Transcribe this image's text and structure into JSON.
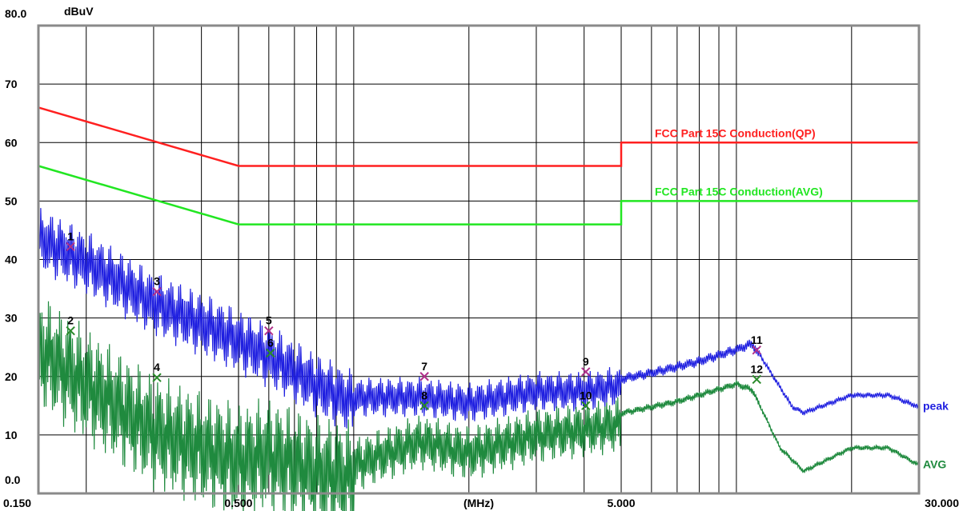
{
  "chart_data": {
    "type": "line",
    "title": "",
    "xlabel": "(MHz)",
    "ylabel": "dBuV",
    "x_scale": "log",
    "xlim": [
      0.15,
      30
    ],
    "ylim": [
      0,
      80
    ],
    "grid": true,
    "y_ticks": [
      {
        "value": 80,
        "label": "80.0"
      },
      {
        "value": 70,
        "label": "70"
      },
      {
        "value": 60,
        "label": "60"
      },
      {
        "value": 50,
        "label": "50"
      },
      {
        "value": 40,
        "label": "40"
      },
      {
        "value": 30,
        "label": "30"
      },
      {
        "value": 20,
        "label": "20"
      },
      {
        "value": 10,
        "label": "10"
      },
      {
        "value": 0,
        "label": "0.0"
      }
    ],
    "x_ticks": [
      {
        "value": 0.15,
        "label": "0.150"
      },
      {
        "value": 0.5,
        "label": "0.500"
      },
      {
        "value": 5,
        "label": "5.000"
      },
      {
        "value": 30,
        "label": "30.000"
      }
    ],
    "colors": {
      "qp_limit": "#ff2020",
      "avg_limit": "#22e622",
      "peak": "#1f1fe0",
      "avg": "#1f8a3e",
      "peak_marker": "#b0308a",
      "avg_marker": "#2a8a2a",
      "grid": "#000000",
      "frame": "#8a8a8a"
    },
    "limits": [
      {
        "name": "FCC Part 15C Conduction(QP)",
        "points": [
          [
            0.15,
            66
          ],
          [
            0.5,
            56
          ],
          [
            5,
            56
          ],
          [
            5,
            60
          ],
          [
            30,
            60
          ]
        ]
      },
      {
        "name": "FCC Part 15C Conduction(AVG)",
        "points": [
          [
            0.15,
            56
          ],
          [
            0.5,
            46
          ],
          [
            5,
            46
          ],
          [
            5,
            50
          ],
          [
            30,
            50
          ]
        ]
      }
    ],
    "series": [
      {
        "name": "peak",
        "envelope": [
          [
            0.15,
            46
          ],
          [
            0.2,
            42
          ],
          [
            0.3,
            35
          ],
          [
            0.45,
            30
          ],
          [
            0.6,
            26
          ],
          [
            0.8,
            21
          ],
          [
            1.0,
            18
          ],
          [
            1.5,
            18
          ],
          [
            2.0,
            17
          ],
          [
            3.0,
            19
          ],
          [
            4.0,
            19
          ],
          [
            5.0,
            20
          ],
          [
            6.0,
            21
          ],
          [
            8.0,
            23
          ],
          [
            10.0,
            25
          ],
          [
            11.0,
            26
          ],
          [
            12.0,
            22
          ],
          [
            14.0,
            15
          ],
          [
            15.0,
            14
          ],
          [
            20.0,
            17
          ],
          [
            25.0,
            17
          ],
          [
            30.0,
            15
          ]
        ]
      },
      {
        "name": "AVG",
        "envelope": [
          [
            0.15,
            29
          ],
          [
            0.2,
            23
          ],
          [
            0.3,
            15
          ],
          [
            0.5,
            10
          ],
          [
            0.6,
            11
          ],
          [
            0.8,
            8
          ],
          [
            1.0,
            7
          ],
          [
            1.5,
            11
          ],
          [
            2.0,
            9
          ],
          [
            3.0,
            12
          ],
          [
            4.0,
            13
          ],
          [
            5.0,
            14
          ],
          [
            7.0,
            16
          ],
          [
            10.0,
            19
          ],
          [
            11.0,
            18
          ],
          [
            13.0,
            8
          ],
          [
            15.0,
            4
          ],
          [
            20.0,
            8
          ],
          [
            25.0,
            8
          ],
          [
            30.0,
            5
          ]
        ]
      }
    ],
    "markers": [
      {
        "label": "1",
        "freq": 0.182,
        "level": 42.2,
        "series": "peak"
      },
      {
        "label": "2",
        "freq": 0.182,
        "level": 27.8,
        "series": "AVG"
      },
      {
        "label": "3",
        "freq": 0.306,
        "level": 34.5,
        "series": "peak"
      },
      {
        "label": "4",
        "freq": 0.306,
        "level": 19.8,
        "series": "AVG"
      },
      {
        "label": "5",
        "freq": 0.6,
        "level": 27.8,
        "series": "peak"
      },
      {
        "label": "6",
        "freq": 0.606,
        "level": 24.0,
        "series": "AVG"
      },
      {
        "label": "7",
        "freq": 1.53,
        "level": 20.0,
        "series": "peak"
      },
      {
        "label": "8",
        "freq": 1.53,
        "level": 15.0,
        "series": "AVG"
      },
      {
        "label": "9",
        "freq": 4.04,
        "level": 20.8,
        "series": "peak"
      },
      {
        "label": "10",
        "freq": 4.04,
        "level": 15.0,
        "series": "AVG"
      },
      {
        "label": "11",
        "freq": 11.3,
        "level": 24.5,
        "series": "peak"
      },
      {
        "label": "12",
        "freq": 11.3,
        "level": 19.5,
        "series": "AVG"
      }
    ]
  }
}
